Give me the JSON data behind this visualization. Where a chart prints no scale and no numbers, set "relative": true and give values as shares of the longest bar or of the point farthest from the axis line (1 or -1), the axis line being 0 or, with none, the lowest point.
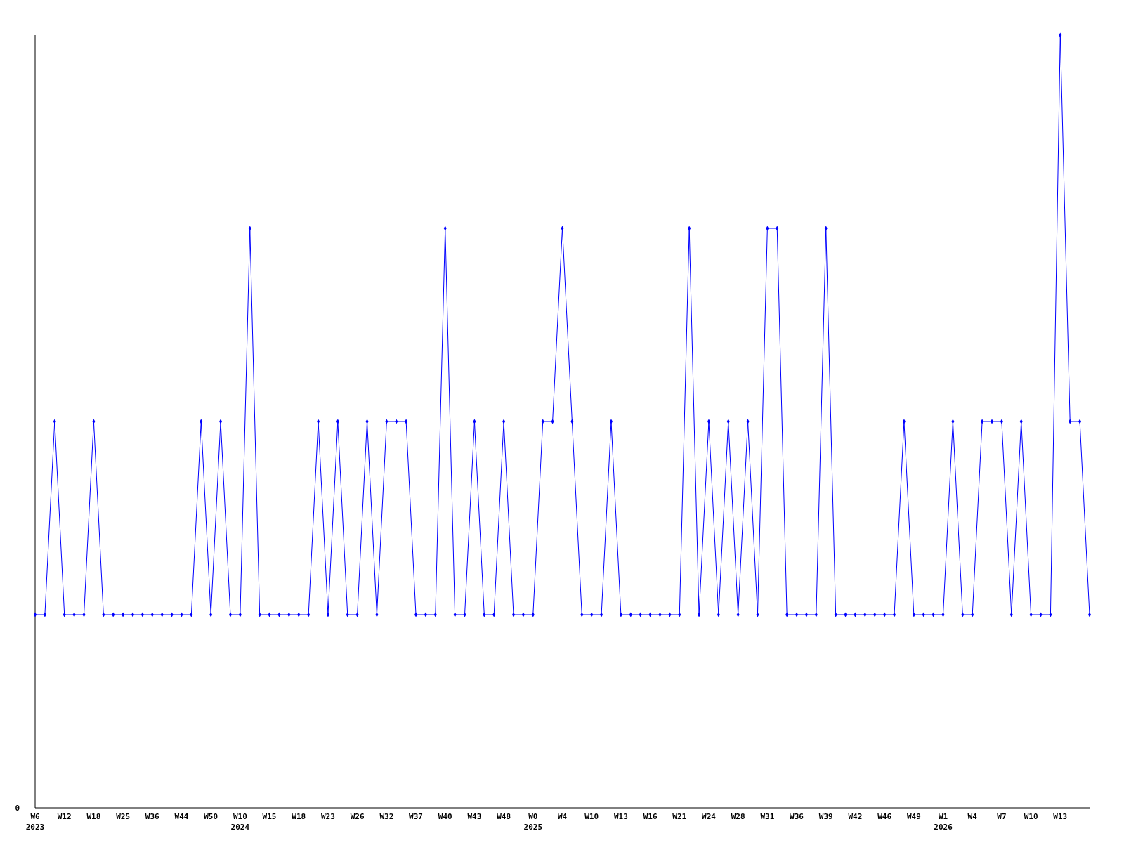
{
  "chart_data": {
    "type": "line",
    "relative": true,
    "marker": "diamond",
    "line_style": "solid",
    "categories": [
      "W6\n2023",
      null,
      null,
      "W12",
      null,
      null,
      "W18",
      null,
      null,
      "W25",
      null,
      null,
      "W36",
      null,
      null,
      "W44",
      null,
      null,
      "W50",
      null,
      null,
      "W10\n2024",
      null,
      null,
      "W15",
      null,
      null,
      "W18",
      null,
      null,
      "W23",
      null,
      null,
      "W26",
      null,
      null,
      "W32",
      null,
      null,
      "W37",
      null,
      null,
      "W40",
      null,
      null,
      "W43",
      null,
      null,
      "W48",
      null,
      null,
      "W0\n2025",
      null,
      null,
      "W4",
      null,
      null,
      "W10",
      null,
      null,
      "W13",
      null,
      null,
      "W16",
      null,
      null,
      "W21",
      null,
      null,
      "W24",
      null,
      null,
      "W28",
      null,
      null,
      "W31",
      null,
      null,
      "W36",
      null,
      null,
      "W39",
      null,
      null,
      "W42",
      null,
      null,
      "W46",
      null,
      null,
      "W49",
      null,
      null,
      "W1\n2026",
      null,
      null,
      "W4",
      null,
      null,
      "W7",
      null,
      null,
      "W10",
      null,
      null,
      "W13",
      null,
      null,
      null
    ],
    "series": [
      {
        "color": "#0000ff",
        "values": [
          0.25,
          0.25,
          0.5,
          0.25,
          0.25,
          0.25,
          0.5,
          0.25,
          0.25,
          0.25,
          0.25,
          0.25,
          0.25,
          0.25,
          0.25,
          0.25,
          0.25,
          0.5,
          0.25,
          0.5,
          0.25,
          0.25,
          0.75,
          0.25,
          0.25,
          0.25,
          0.25,
          0.25,
          0.25,
          0.5,
          0.25,
          0.5,
          0.25,
          0.25,
          0.5,
          0.25,
          0.5,
          0.5,
          0.5,
          0.25,
          0.25,
          0.25,
          0.75,
          0.25,
          0.25,
          0.5,
          0.25,
          0.25,
          0.5,
          0.25,
          0.25,
          0.25,
          0.5,
          0.5,
          0.75,
          0.5,
          0.25,
          0.25,
          0.25,
          0.5,
          0.25,
          0.25,
          0.25,
          0.25,
          0.25,
          0.25,
          0.25,
          0.75,
          0.25,
          0.5,
          0.25,
          0.5,
          0.25,
          0.5,
          0.25,
          0.75,
          0.75,
          0.25,
          0.25,
          0.25,
          0.25,
          0.75,
          0.25,
          0.25,
          0.25,
          0.25,
          0.25,
          0.25,
          0.25,
          0.5,
          0.25,
          0.25,
          0.25,
          0.25,
          0.5,
          0.25,
          0.25,
          0.5,
          0.5,
          0.5,
          0.25,
          0.5,
          0.25,
          0.25,
          0.25,
          1,
          0.5,
          0.5,
          0.25
        ]
      }
    ],
    "annotations": [
      "0"
    ]
  }
}
